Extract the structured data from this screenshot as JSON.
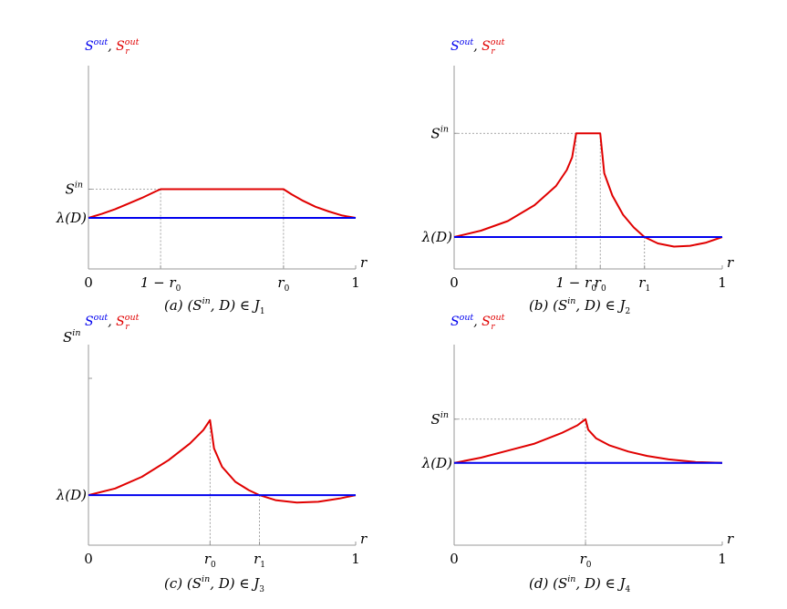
{
  "chart_data": [
    {
      "id": "a",
      "type": "line",
      "title": "",
      "caption": {
        "tag": "(a)",
        "relation": "(S",
        "sup": "in",
        "rest": ", D) ∈ J",
        "sub": "1"
      },
      "ylabel": {
        "s1": "S",
        "s1_sup": "out",
        "sep": ",",
        "s2": "S",
        "s2_sup": "out",
        "s2_sub": "r"
      },
      "xlabel": "r",
      "xlim": [
        0,
        1
      ],
      "ylim": [
        0,
        1
      ],
      "y_levels": {
        "sin_label": "S",
        "sin_sup": "in",
        "sin": 0.5,
        "lambda_label": "λ(D)",
        "lambda": 0.32
      },
      "x_ticks": [
        {
          "label": "0",
          "x": 0
        },
        {
          "label": "1 − r",
          "sub": "0",
          "x": 0.27
        },
        {
          "label": "r",
          "sub": "0",
          "x": 0.73
        },
        {
          "label": "1",
          "x": 1
        }
      ],
      "series": [
        {
          "color": "#e00000",
          "points": [
            [
              0,
              0.32
            ],
            [
              0.05,
              0.345
            ],
            [
              0.1,
              0.375
            ],
            [
              0.15,
              0.41
            ],
            [
              0.2,
              0.445
            ],
            [
              0.25,
              0.485
            ],
            [
              0.27,
              0.5
            ],
            [
              0.73,
              0.5
            ],
            [
              0.76,
              0.468
            ],
            [
              0.8,
              0.43
            ],
            [
              0.85,
              0.39
            ],
            [
              0.9,
              0.36
            ],
            [
              0.95,
              0.335
            ],
            [
              1,
              0.32
            ]
          ]
        },
        {
          "color": "#0000ee",
          "points": [
            [
              0,
              0.32
            ],
            [
              1,
              0.32
            ]
          ]
        }
      ],
      "dashed_guides": [
        {
          "x": 0.27,
          "y": 0.5
        },
        {
          "x": 0.73,
          "y": 0.5
        }
      ]
    },
    {
      "id": "b",
      "type": "line",
      "title": "",
      "caption": {
        "tag": "(b)",
        "relation": "(S",
        "sup": "in",
        "rest": ", D) ∈ J",
        "sub": "2"
      },
      "ylabel": {
        "s1": "S",
        "s1_sup": "out",
        "sep": ",",
        "s2": "S",
        "s2_sup": "out",
        "s2_sub": "r"
      },
      "xlabel": "r",
      "xlim": [
        0,
        1
      ],
      "ylim": [
        0,
        1
      ],
      "y_levels": {
        "sin_label": "S",
        "sin_sup": "in",
        "sin": 0.85,
        "lambda_label": "λ(D)",
        "lambda": 0.2
      },
      "x_ticks": [
        {
          "label": "0",
          "x": 0
        },
        {
          "label": "1 − r",
          "sub": "0",
          "x": 0.455
        },
        {
          "label": "r",
          "sub": "0",
          "x": 0.545
        },
        {
          "label": "r",
          "sub": "1",
          "x": 0.71
        },
        {
          "label": "1",
          "x": 1
        }
      ],
      "series": [
        {
          "color": "#e00000",
          "points": [
            [
              0,
              0.2
            ],
            [
              0.1,
              0.24
            ],
            [
              0.2,
              0.3
            ],
            [
              0.3,
              0.4
            ],
            [
              0.38,
              0.52
            ],
            [
              0.42,
              0.62
            ],
            [
              0.44,
              0.7
            ],
            [
              0.455,
              0.85
            ],
            [
              0.545,
              0.85
            ],
            [
              0.56,
              0.6
            ],
            [
              0.59,
              0.46
            ],
            [
              0.63,
              0.34
            ],
            [
              0.67,
              0.26
            ],
            [
              0.71,
              0.2
            ],
            [
              0.76,
              0.16
            ],
            [
              0.82,
              0.14
            ],
            [
              0.88,
              0.145
            ],
            [
              0.94,
              0.165
            ],
            [
              1,
              0.2
            ]
          ]
        },
        {
          "color": "#0000ee",
          "points": [
            [
              0,
              0.2
            ],
            [
              1,
              0.2
            ]
          ]
        }
      ],
      "dashed_guides": [
        {
          "x": 0.455,
          "y": 0.85
        },
        {
          "x": 0.545,
          "y": 0.85
        },
        {
          "x": 0.71,
          "y": 0.2
        }
      ]
    },
    {
      "id": "c",
      "type": "line",
      "title": "",
      "caption": {
        "tag": "(c)",
        "relation": "(S",
        "sup": "in",
        "rest": ", D) ∈ J",
        "sub": "3"
      },
      "ylabel": {
        "s1": "S",
        "s1_sup": "out",
        "sep": ",",
        "s2": "S",
        "s2_sup": "out",
        "s2_sub": "r"
      },
      "xlabel": "r",
      "xlim": [
        0,
        1
      ],
      "ylim": [
        0,
        1
      ],
      "y_levels": {
        "sin_label": "S",
        "sin_sup": "in",
        "sin": 1.0,
        "lambda_label": "λ(D)",
        "lambda": 0.3
      },
      "x_ticks": [
        {
          "label": "0",
          "x": 0
        },
        {
          "label": "r",
          "sub": "0",
          "x": 0.455
        },
        {
          "label": "r",
          "sub": "1",
          "x": 0.64
        },
        {
          "label": "1",
          "x": 1
        }
      ],
      "series": [
        {
          "color": "#e00000",
          "points": [
            [
              0,
              0.3
            ],
            [
              0.1,
              0.34
            ],
            [
              0.2,
              0.41
            ],
            [
              0.3,
              0.51
            ],
            [
              0.38,
              0.61
            ],
            [
              0.43,
              0.69
            ],
            [
              0.455,
              0.75
            ],
            [
              0.47,
              0.58
            ],
            [
              0.5,
              0.47
            ],
            [
              0.55,
              0.38
            ],
            [
              0.6,
              0.33
            ],
            [
              0.64,
              0.3
            ],
            [
              0.7,
              0.27
            ],
            [
              0.78,
              0.255
            ],
            [
              0.86,
              0.26
            ],
            [
              0.94,
              0.28
            ],
            [
              1,
              0.3
            ]
          ]
        },
        {
          "color": "#0000ee",
          "points": [
            [
              0,
              0.3
            ],
            [
              1,
              0.3
            ]
          ]
        }
      ],
      "dashed_guides": [
        {
          "x": 0.455,
          "y": 0.75
        },
        {
          "x": 0.64,
          "y": 0.3
        }
      ]
    },
    {
      "id": "d",
      "type": "line",
      "title": "",
      "caption": {
        "tag": "(d)",
        "relation": "(S",
        "sup": "in",
        "rest": ", D) ∈ J",
        "sub": "4"
      },
      "ylabel": {
        "s1": "S",
        "s1_sup": "out",
        "sep": ",",
        "s2": "S",
        "s2_sup": "out",
        "s2_sub": "r"
      },
      "xlabel": "r",
      "xlim": [
        0,
        1
      ],
      "ylim": [
        0,
        1
      ],
      "y_levels": {
        "sin_label": "S",
        "sin_sup": "in",
        "sin": 0.72,
        "lambda_label": "λ(D)",
        "lambda": 0.47
      },
      "x_ticks": [
        {
          "label": "0",
          "x": 0
        },
        {
          "label": "r",
          "sub": "0",
          "x": 0.49
        },
        {
          "label": "1",
          "x": 1
        }
      ],
      "series": [
        {
          "color": "#e00000",
          "points": [
            [
              0,
              0.47
            ],
            [
              0.1,
              0.5
            ],
            [
              0.2,
              0.54
            ],
            [
              0.3,
              0.58
            ],
            [
              0.4,
              0.64
            ],
            [
              0.46,
              0.685
            ],
            [
              0.49,
              0.72
            ],
            [
              0.5,
              0.66
            ],
            [
              0.53,
              0.61
            ],
            [
              0.58,
              0.57
            ],
            [
              0.65,
              0.535
            ],
            [
              0.72,
              0.51
            ],
            [
              0.8,
              0.49
            ],
            [
              0.9,
              0.475
            ],
            [
              1,
              0.47
            ]
          ]
        },
        {
          "color": "#0000ee",
          "points": [
            [
              0,
              0.47
            ],
            [
              1,
              0.47
            ]
          ]
        }
      ],
      "dashed_guides": [
        {
          "x": 0.49,
          "y": 0.72
        }
      ]
    }
  ]
}
